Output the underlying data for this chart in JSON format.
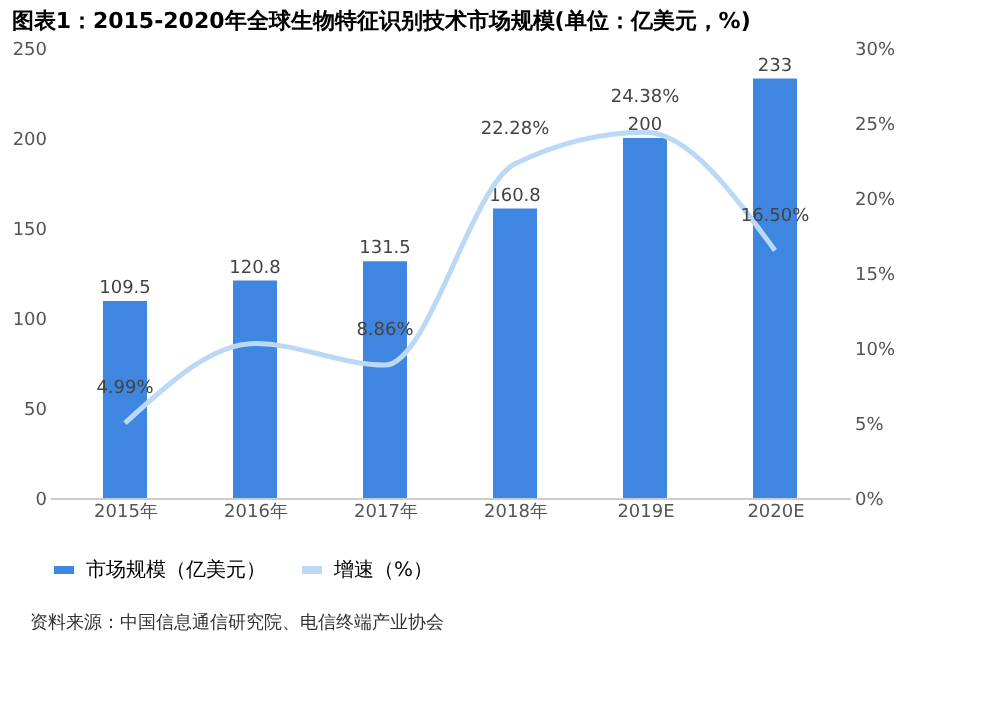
{
  "chart_data": {
    "type": "bar",
    "title": "图表1：2015-2020年全球生物特征识别技术市场规模(单位：亿美元，%)",
    "categories": [
      "2015年",
      "2016年",
      "2017年",
      "2018年",
      "2019E",
      "2020E"
    ],
    "series": [
      {
        "name": "市场规模（亿美元）",
        "color": "#3f86e0",
        "values": [
          109.5,
          120.8,
          131.5,
          160.8,
          200,
          233
        ],
        "value_labels": [
          "109.5",
          "120.8",
          "131.5",
          "160.8",
          "200",
          "233"
        ]
      },
      {
        "name": "增速（%）",
        "type": "line",
        "axis": "y2",
        "color": "#bcd8f7",
        "values": [
          4.99,
          10.3,
          8.86,
          22.28,
          24.38,
          16.5
        ],
        "value_labels": [
          "4.99%",
          null,
          "8.86%",
          "22.28%",
          "24.38%",
          "16.50%"
        ]
      }
    ],
    "ylim": [
      0,
      250
    ],
    "yticks": [
      0,
      50,
      100,
      150,
      200,
      250
    ],
    "y2lim": [
      0,
      30
    ],
    "y2ticks": [
      {
        "value": 0,
        "label": "0%"
      },
      {
        "value": 5,
        "label": "5%"
      },
      {
        "value": 10,
        "label": "10%"
      },
      {
        "value": 15,
        "label": "15%"
      },
      {
        "value": 20,
        "label": "20%"
      },
      {
        "value": 25,
        "label": "25%"
      },
      {
        "value": 30,
        "label": "30%"
      }
    ],
    "grid": false,
    "legend": "bottom",
    "marker": "none",
    "line_style": "solid",
    "annotations": [
      "资料来源：中国信息通信研究院、电信终端产业协会"
    ]
  }
}
